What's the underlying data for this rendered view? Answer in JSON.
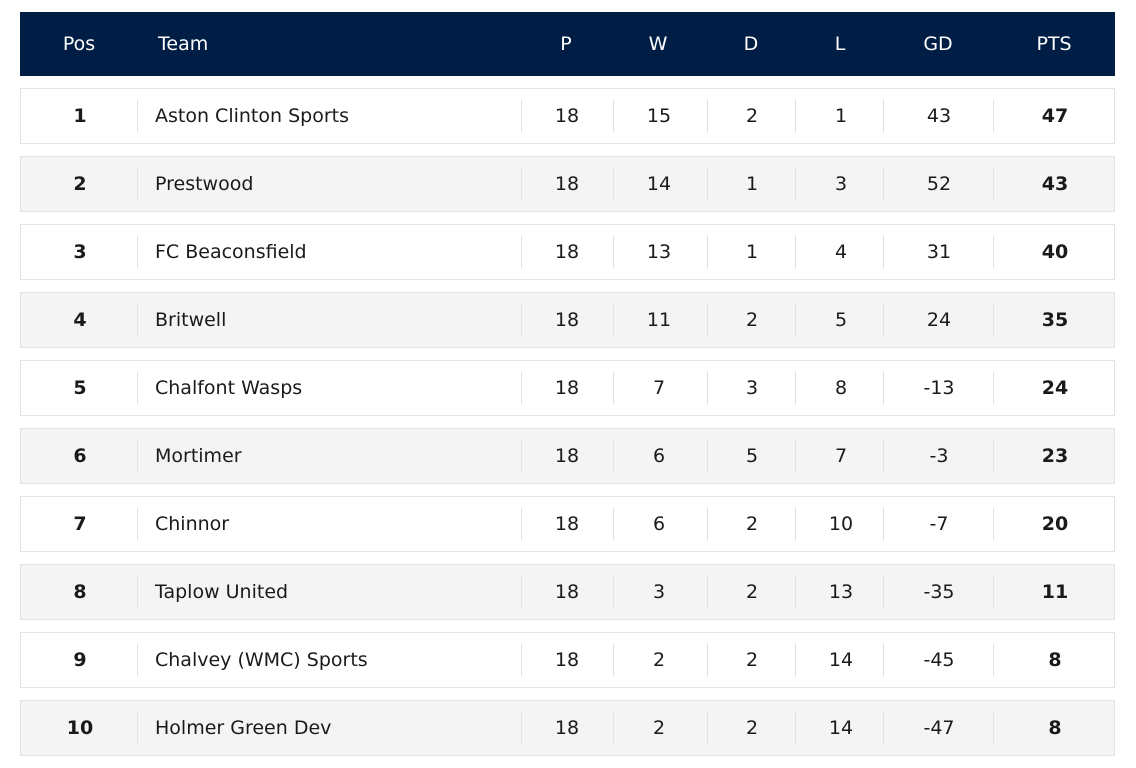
{
  "header": {
    "pos": "Pos",
    "team": "Team",
    "p": "P",
    "w": "W",
    "d": "D",
    "l": "L",
    "gd": "GD",
    "pts": "PTS"
  },
  "rows": [
    {
      "pos": "1",
      "team": "Aston Clinton Sports",
      "p": "18",
      "w": "15",
      "d": "2",
      "l": "1",
      "gd": "43",
      "pts": "47"
    },
    {
      "pos": "2",
      "team": "Prestwood",
      "p": "18",
      "w": "14",
      "d": "1",
      "l": "3",
      "gd": "52",
      "pts": "43"
    },
    {
      "pos": "3",
      "team": "FC Beaconsfield",
      "p": "18",
      "w": "13",
      "d": "1",
      "l": "4",
      "gd": "31",
      "pts": "40"
    },
    {
      "pos": "4",
      "team": "Britwell",
      "p": "18",
      "w": "11",
      "d": "2",
      "l": "5",
      "gd": "24",
      "pts": "35"
    },
    {
      "pos": "5",
      "team": "Chalfont Wasps",
      "p": "18",
      "w": "7",
      "d": "3",
      "l": "8",
      "gd": "-13",
      "pts": "24"
    },
    {
      "pos": "6",
      "team": "Mortimer",
      "p": "18",
      "w": "6",
      "d": "5",
      "l": "7",
      "gd": "-3",
      "pts": "23"
    },
    {
      "pos": "7",
      "team": "Chinnor",
      "p": "18",
      "w": "6",
      "d": "2",
      "l": "10",
      "gd": "-7",
      "pts": "20"
    },
    {
      "pos": "8",
      "team": "Taplow United",
      "p": "18",
      "w": "3",
      "d": "2",
      "l": "13",
      "gd": "-35",
      "pts": "11"
    },
    {
      "pos": "9",
      "team": "Chalvey (WMC) Sports",
      "p": "18",
      "w": "2",
      "d": "2",
      "l": "14",
      "gd": "-45",
      "pts": "8"
    },
    {
      "pos": "10",
      "team": "Holmer Green Dev",
      "p": "18",
      "w": "2",
      "d": "2",
      "l": "14",
      "gd": "-47",
      "pts": "8"
    }
  ],
  "colors": {
    "header_bg": "#001e45",
    "row_alt_bg": "#f4f4f4",
    "row_bg": "#ffffff"
  }
}
